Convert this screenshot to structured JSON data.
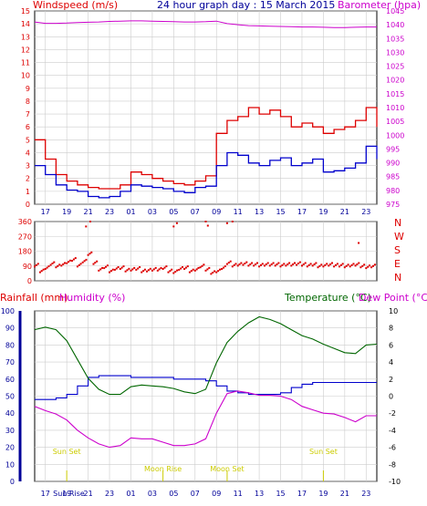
{
  "header": {
    "left_title": "Windspeed (m/s)",
    "center_title": "24 hour graph day : 15 March 2015",
    "right_title": "Barometer (hpa)"
  },
  "mid_header": {
    "rainfall_label": "Rainfall (mm)",
    "humidity_label": "Humidity (%)",
    "temperature_label": "Temperature (°C)",
    "dewpoint_label": "Dew Point (°C)"
  },
  "x_axis_hours": [
    "17",
    "19",
    "21",
    "23",
    "01",
    "03",
    "05",
    "07",
    "09",
    "11",
    "13",
    "15",
    "17",
    "19",
    "21",
    "23"
  ],
  "x_axis_hours_bottom": [
    "17",
    "19",
    "21",
    "23",
    "01",
    "03",
    "05",
    "07",
    "09",
    "11",
    "13",
    "15",
    "17",
    "19",
    "21",
    "23"
  ],
  "bottom_extra_tick_label": "Sun Rise",
  "annotations": [
    {
      "label": "Sun Set",
      "hour": 19
    },
    {
      "label": "Moon Rise",
      "hour": 28
    },
    {
      "label": "Moon Set",
      "hour": 34
    },
    {
      "label": "Sun Set",
      "hour": 43
    }
  ],
  "colors": {
    "wind_high": "#dd0000",
    "wind_avg": "#0000cc",
    "barometer": "#cc00cc",
    "direction": "#dd0000",
    "humidity": "#cc00cc",
    "temperature": "#006600",
    "dewpoint": "#cc00cc",
    "rainfall": "#0000cc",
    "rain_axis": "#000099",
    "annotation": "#cccc00",
    "grid": "#cccccc"
  },
  "chart_data": [
    {
      "type": "line",
      "title": "24 hour graph day : 15 March 2015",
      "ylabel": "Windspeed (m/s)",
      "y2label": "Barometer (hpa)",
      "ylim": [
        0,
        15
      ],
      "y_ticks": [
        "0",
        "1",
        "2",
        "3",
        "4",
        "5",
        "6",
        "7",
        "8",
        "9",
        "10",
        "11",
        "12",
        "13",
        "14",
        "15"
      ],
      "y2lim": [
        975,
        1045
      ],
      "y2_ticks": [
        "975",
        "980",
        "985",
        "990",
        "995",
        "1000",
        "1005",
        "1010",
        "1015",
        "1020",
        "1025",
        "1030",
        "1035",
        "1040",
        "1045"
      ],
      "x_hours": [
        16,
        17,
        18,
        19,
        20,
        21,
        22,
        23,
        24,
        25,
        26,
        27,
        28,
        29,
        30,
        31,
        32,
        33,
        34,
        35,
        36,
        37,
        38,
        39,
        40,
        41,
        42,
        43,
        44,
        45,
        46,
        47,
        48
      ],
      "series": [
        {
          "values": [
            5.0,
            3.5,
            2.3,
            1.8,
            1.5,
            1.3,
            1.2,
            1.2,
            1.5,
            2.5,
            2.3,
            2.0,
            1.8,
            1.6,
            1.5,
            1.8,
            2.2,
            5.5,
            6.5,
            6.8,
            7.5,
            7.0,
            7.3,
            6.8,
            6.0,
            6.3,
            6.0,
            5.5,
            5.8,
            6.0,
            6.5,
            7.5,
            6.0
          ]
        },
        {
          "values": [
            3.0,
            2.3,
            1.5,
            1.1,
            1.0,
            0.6,
            0.5,
            0.6,
            1.0,
            1.5,
            1.4,
            1.3,
            1.2,
            1.0,
            0.9,
            1.3,
            1.4,
            3.0,
            4.0,
            3.8,
            3.2,
            3.0,
            3.4,
            3.6,
            3.0,
            3.2,
            3.5,
            2.5,
            2.6,
            2.8,
            3.2,
            4.5,
            3.5
          ]
        },
        {
          "values": [
            1041,
            1040.5,
            1040.5,
            1040.6,
            1040.8,
            1040.9,
            1041.0,
            1041.2,
            1041.3,
            1041.4,
            1041.4,
            1041.3,
            1041.2,
            1041.1,
            1041.0,
            1041.0,
            1041.1,
            1041.3,
            1040.4,
            1040.0,
            1039.7,
            1039.6,
            1039.5,
            1039.4,
            1039.3,
            1039.2,
            1039.2,
            1039.1,
            1039.0,
            1039.0,
            1039.1,
            1039.2,
            1039.2
          ]
        }
      ]
    },
    {
      "type": "scatter",
      "ylabel_letters": [
        "N",
        "W",
        "S",
        "E",
        "N"
      ],
      "ylim": [
        0,
        360
      ],
      "y_ticks": [
        "0",
        "90",
        "180",
        "270",
        "360"
      ],
      "x_hours": [
        16,
        16.5,
        17,
        17.5,
        18,
        18.5,
        19,
        19.5,
        20,
        20.5,
        21,
        21.5,
        22,
        22.5,
        23,
        23.5,
        24,
        24.5,
        25,
        25.5,
        26,
        26.5,
        27,
        27.5,
        28,
        28.5,
        29,
        29.5,
        30,
        30.5,
        31,
        31.5,
        32,
        32.5,
        33,
        33.5,
        34,
        34.5,
        35,
        35.5,
        36,
        36.5,
        37,
        37.5,
        38,
        38.5,
        39,
        39.5,
        40,
        40.5,
        41,
        41.5,
        42,
        42.5,
        43,
        43.5,
        44,
        44.5,
        45,
        45.5,
        46,
        46.5,
        47,
        47.5
      ],
      "values": [
        95,
        60,
        80,
        105,
        90,
        100,
        115,
        130,
        95,
        120,
        165,
        110,
        70,
        85,
        60,
        75,
        80,
        65,
        70,
        75,
        60,
        65,
        70,
        70,
        80,
        60,
        55,
        75,
        80,
        60,
        70,
        90,
        70,
        50,
        60,
        80,
        110,
        95,
        100,
        105,
        100,
        100,
        95,
        100,
        100,
        100,
        95,
        100,
        100,
        105,
        100,
        95,
        100,
        90,
        95,
        100,
        95,
        95,
        90,
        95,
        100,
        90,
        85,
        90
      ],
      "outliers": [
        {
          "x": 21.2,
          "y": 360
        },
        {
          "x": 20.8,
          "y": 330
        },
        {
          "x": 29.0,
          "y": 330
        },
        {
          "x": 29.3,
          "y": 350
        },
        {
          "x": 32.0,
          "y": 360
        },
        {
          "x": 32.2,
          "y": 335
        },
        {
          "x": 34.0,
          "y": 350
        },
        {
          "x": 34.5,
          "y": 360
        },
        {
          "x": 46.3,
          "y": 230
        }
      ]
    },
    {
      "type": "line",
      "ylabel": "Rainfall (mm)",
      "y_left_lim": [
        0,
        100
      ],
      "y_left_ticks": [
        "0",
        "10",
        "20",
        "30",
        "40",
        "50",
        "60",
        "70",
        "80",
        "90",
        "100"
      ],
      "y2lim": [
        -10,
        10
      ],
      "y2_ticks": [
        "-10",
        "-8",
        "-6",
        "-4",
        "-2",
        "0",
        "2",
        "4",
        "6",
        "8",
        "10"
      ],
      "x_hours": [
        16,
        17,
        18,
        19,
        20,
        21,
        22,
        23,
        24,
        25,
        26,
        27,
        28,
        29,
        30,
        31,
        32,
        33,
        34,
        35,
        36,
        37,
        38,
        39,
        40,
        41,
        42,
        43,
        44,
        45,
        46,
        47,
        48
      ],
      "series": [
        {
          "name": "Humidity",
          "values": [
            48,
            48,
            49,
            51,
            56,
            61,
            62,
            62,
            62,
            61,
            61,
            61,
            61,
            60,
            60,
            60,
            59,
            56,
            53,
            52,
            51,
            51,
            51,
            52,
            55,
            57,
            58,
            58,
            58,
            58,
            58,
            58,
            58
          ]
        },
        {
          "name": "Temperature",
          "values": [
            7.8,
            8.1,
            7.8,
            6.5,
            4.3,
            2.1,
            0.8,
            0.2,
            0.2,
            1.1,
            1.3,
            1.2,
            1.1,
            0.9,
            0.5,
            0.3,
            0.8,
            3.9,
            6.3,
            7.6,
            8.6,
            9.3,
            9.0,
            8.5,
            7.8,
            7.1,
            6.7,
            6.1,
            5.6,
            5.1,
            5.0,
            6.0,
            6.1
          ]
        },
        {
          "name": "Dew Point",
          "values": [
            -1.2,
            -1.7,
            -2.1,
            -2.8,
            -4.0,
            -4.9,
            -5.6,
            -6.0,
            -5.8,
            -4.9,
            -5.0,
            -5.0,
            -5.4,
            -5.8,
            -5.8,
            -5.6,
            -5.0,
            -2.0,
            0.3,
            0.6,
            0.4,
            0.1,
            0.1,
            0.0,
            -0.4,
            -1.2,
            -1.6,
            -2.0,
            -2.1,
            -2.5,
            -3.0,
            -2.3,
            -2.3
          ]
        }
      ]
    }
  ]
}
